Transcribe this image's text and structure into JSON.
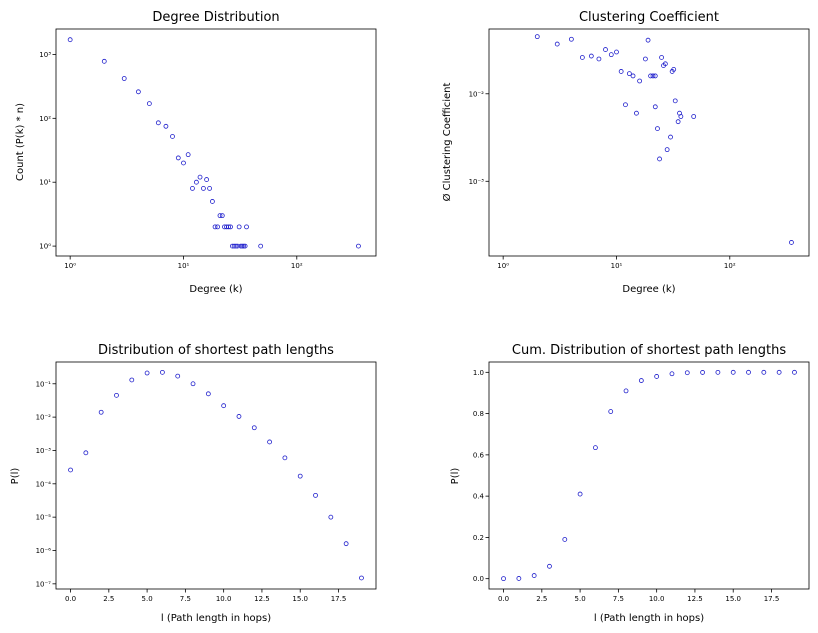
{
  "chart_data": [
    {
      "type": "scatter",
      "title": "Degree Distribution",
      "xlabel": "Degree (k)",
      "ylabel": "Count (P(k) * n)",
      "xscale": "log",
      "yscale": "log",
      "xlim": [
        0.75,
        500
      ],
      "ylim": [
        0.7,
        2500
      ],
      "xticks": [
        1,
        10,
        100
      ],
      "xticklabels": [
        "10⁰",
        "10¹",
        "10²"
      ],
      "yticks": [
        1,
        10,
        100,
        1000
      ],
      "yticklabels": [
        "10⁰",
        "10¹",
        "10²",
        "10³"
      ],
      "x": [
        1,
        2,
        3,
        4,
        5,
        6,
        7,
        8,
        9,
        10,
        11,
        12,
        13,
        14,
        15,
        16,
        17,
        18,
        19,
        20,
        21,
        22,
        23,
        24,
        25,
        26,
        27,
        28,
        29,
        30,
        31,
        32,
        33,
        34,
        35,
        36,
        48,
        350
      ],
      "y": [
        1700,
        780,
        420,
        260,
        170,
        85,
        75,
        52,
        24,
        20,
        27,
        8,
        10,
        12,
        8,
        11,
        8,
        5,
        2,
        2,
        3,
        3,
        2,
        2,
        2,
        2,
        1,
        1,
        1,
        1,
        2,
        1,
        1,
        1,
        1,
        2,
        1,
        1
      ]
    },
    {
      "type": "scatter",
      "title": "Clustering Coefficient",
      "xlabel": "Degree (k)",
      "ylabel": "Ø Clustering Coefficient",
      "xscale": "log",
      "yscale": "log",
      "xlim": [
        0.75,
        500
      ],
      "ylim": [
        0.00014,
        0.055
      ],
      "xticks": [
        1,
        10,
        100
      ],
      "xticklabels": [
        "10⁰",
        "10¹",
        "10²"
      ],
      "yticks": [
        0.001,
        0.01
      ],
      "yticklabels": [
        "10⁻³",
        "10⁻²"
      ],
      "x": [
        2,
        3,
        4,
        5,
        6,
        7,
        8,
        9,
        10,
        11,
        12,
        13,
        14,
        15,
        16,
        18,
        19,
        20,
        21,
        22,
        22,
        23,
        24,
        25,
        26,
        27,
        28,
        30,
        31,
        32,
        33,
        35,
        36,
        37,
        48,
        350
      ],
      "y": [
        0.045,
        0.037,
        0.042,
        0.026,
        0.027,
        0.025,
        0.032,
        0.028,
        0.03,
        0.018,
        0.0075,
        0.017,
        0.016,
        0.006,
        0.014,
        0.025,
        0.041,
        0.016,
        0.016,
        0.016,
        0.0071,
        0.004,
        0.0018,
        0.026,
        0.021,
        0.022,
        0.0023,
        0.0032,
        0.018,
        0.019,
        0.0083,
        0.0048,
        0.006,
        0.0055,
        0.0055,
        0.0002
      ]
    },
    {
      "type": "scatter",
      "title": "Distribution of shortest path lengths",
      "xlabel": "l (Path length in hops)",
      "ylabel": "P(l)",
      "xscale": "linear",
      "yscale": "log",
      "xlim": [
        -0.95,
        19.95
      ],
      "ylim": [
        7e-08,
        0.45
      ],
      "xticks": [
        0,
        2.5,
        5,
        7.5,
        10,
        12.5,
        15,
        17.5
      ],
      "xticklabels": [
        "0.0",
        "2.5",
        "5.0",
        "7.5",
        "10.0",
        "12.5",
        "15.0",
        "17.5"
      ],
      "yticks": [
        1e-07,
        1e-06,
        1e-05,
        0.0001,
        0.001,
        0.01,
        0.1
      ],
      "yticklabels": [
        "10⁻⁷",
        "10⁻⁶",
        "10⁻⁵",
        "10⁻⁴",
        "10⁻³",
        "10⁻²",
        "10⁻¹"
      ],
      "x": [
        0,
        1,
        2,
        3,
        4,
        5,
        6,
        7,
        8,
        9,
        10,
        11,
        12,
        13,
        14,
        15,
        16,
        17,
        18,
        19
      ],
      "y": [
        0.00026,
        0.00085,
        0.014,
        0.045,
        0.13,
        0.21,
        0.22,
        0.17,
        0.1,
        0.05,
        0.022,
        0.0105,
        0.0048,
        0.0018,
        0.0006,
        0.00017,
        4.5e-05,
        1e-05,
        1.6e-06,
        1.5e-07
      ]
    },
    {
      "type": "scatter",
      "title": "Cum. Distribution of shortest path lengths",
      "xlabel": "l (Path length in hops)",
      "ylabel": "P(l)",
      "xscale": "linear",
      "yscale": "linear",
      "xlim": [
        -0.95,
        19.95
      ],
      "ylim": [
        -0.05,
        1.05
      ],
      "xticks": [
        0,
        2.5,
        5,
        7.5,
        10,
        12.5,
        15,
        17.5
      ],
      "xticklabels": [
        "0.0",
        "2.5",
        "5.0",
        "7.5",
        "10.0",
        "12.5",
        "15.0",
        "17.5"
      ],
      "yticks": [
        0,
        0.2,
        0.4,
        0.6,
        0.8,
        1.0
      ],
      "yticklabels": [
        "0.0",
        "0.2",
        "0.4",
        "0.6",
        "0.8",
        "1.0"
      ],
      "x": [
        0,
        1,
        2,
        3,
        4,
        5,
        6,
        7,
        8,
        9,
        10,
        11,
        12,
        13,
        14,
        15,
        16,
        17,
        18,
        19
      ],
      "y": [
        0.0003,
        0.0011,
        0.015,
        0.06,
        0.19,
        0.41,
        0.635,
        0.81,
        0.91,
        0.96,
        0.98,
        0.993,
        0.998,
        0.9995,
        0.9999,
        1.0,
        1.0,
        1.0,
        1.0,
        1.0
      ]
    }
  ]
}
